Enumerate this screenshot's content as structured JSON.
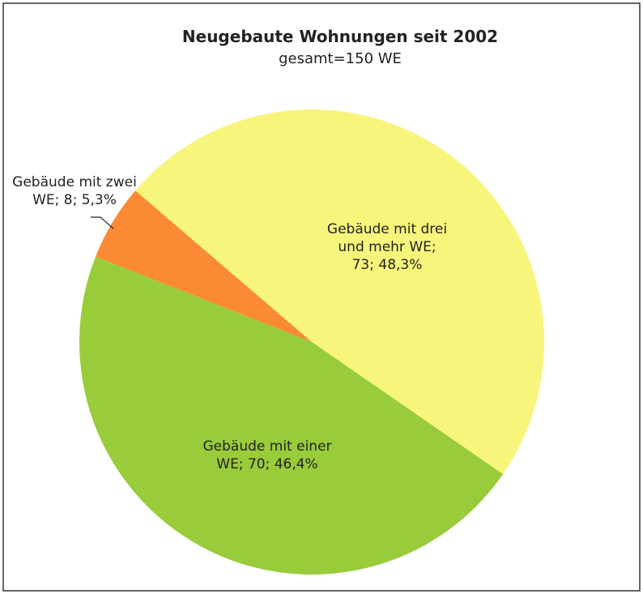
{
  "chart_data": {
    "type": "pie",
    "title": "Neugebaute Wohnungen seit 2002",
    "subtitle": "gesamt=150 WE",
    "categories": [
      "Gebäude mit drei und mehr WE",
      "Gebäude mit einer WE",
      "Gebäude mit zwei WE"
    ],
    "values": [
      73,
      70,
      8
    ],
    "labels": [
      "Gebäude mit drei und mehr WE; 73; 48,3%",
      "Gebäude mit einer WE; 70; 46,4%",
      "Gebäude mit zwei WE; 8; 5,3%"
    ],
    "colors": [
      "#f7f57c",
      "#99cc3a",
      "#fb8a35"
    ]
  }
}
